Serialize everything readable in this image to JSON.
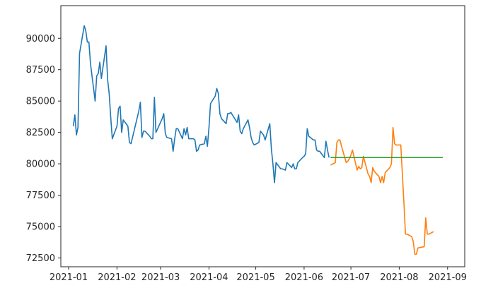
{
  "chart_data": {
    "type": "line",
    "title": "",
    "xlabel": "",
    "ylabel": "",
    "xlim": [
      "2020-12-27",
      "2021-09-12"
    ],
    "ylim": [
      71800,
      92600
    ],
    "grid": false,
    "x_ticks": [
      "2021-01",
      "2021-02",
      "2021-03",
      "2021-04",
      "2021-05",
      "2021-06",
      "2021-07",
      "2021-08",
      "2021-09"
    ],
    "y_ticks": [
      "72500",
      "75000",
      "77500",
      "80000",
      "82500",
      "85000",
      "87500",
      "90000"
    ],
    "series": [
      {
        "color": "#1f77b4",
        "points": [
          [
            "2021-01-04",
            83000
          ],
          [
            "2021-01-05",
            83900
          ],
          [
            "2021-01-06",
            82300
          ],
          [
            "2021-01-07",
            82900
          ],
          [
            "2021-01-08",
            88800
          ],
          [
            "2021-01-11",
            91000
          ],
          [
            "2021-01-12",
            90600
          ],
          [
            "2021-01-13",
            89700
          ],
          [
            "2021-01-14",
            89700
          ],
          [
            "2021-01-15",
            88000
          ],
          [
            "2021-01-18",
            85000
          ],
          [
            "2021-01-19",
            87000
          ],
          [
            "2021-01-20",
            87200
          ],
          [
            "2021-01-21",
            88100
          ],
          [
            "2021-01-22",
            86800
          ],
          [
            "2021-01-25",
            89400
          ],
          [
            "2021-01-26",
            86700
          ],
          [
            "2021-01-27",
            85600
          ],
          [
            "2021-01-28",
            83700
          ],
          [
            "2021-01-29",
            82000
          ],
          [
            "2021-02-01",
            83000
          ],
          [
            "2021-02-02",
            84400
          ],
          [
            "2021-02-03",
            84600
          ],
          [
            "2021-02-04",
            82500
          ],
          [
            "2021-02-05",
            83500
          ],
          [
            "2021-02-08",
            83000
          ],
          [
            "2021-02-09",
            81700
          ],
          [
            "2021-02-10",
            81600
          ],
          [
            "2021-02-15",
            84200
          ],
          [
            "2021-02-16",
            84900
          ],
          [
            "2021-02-17",
            82100
          ],
          [
            "2021-02-18",
            82600
          ],
          [
            "2021-02-19",
            82600
          ],
          [
            "2021-02-22",
            82200
          ],
          [
            "2021-02-23",
            82000
          ],
          [
            "2021-02-24",
            82000
          ],
          [
            "2021-02-25",
            85300
          ],
          [
            "2021-02-26",
            82500
          ],
          [
            "2021-03-02",
            83600
          ],
          [
            "2021-03-03",
            84000
          ],
          [
            "2021-03-04",
            82400
          ],
          [
            "2021-03-05",
            82100
          ],
          [
            "2021-03-08",
            82000
          ],
          [
            "2021-03-09",
            81000
          ],
          [
            "2021-03-10",
            82000
          ],
          [
            "2021-03-11",
            82800
          ],
          [
            "2021-03-12",
            82800
          ],
          [
            "2021-03-15",
            82000
          ],
          [
            "2021-03-16",
            82800
          ],
          [
            "2021-03-17",
            82300
          ],
          [
            "2021-03-18",
            82900
          ],
          [
            "2021-03-19",
            82000
          ],
          [
            "2021-03-22",
            82000
          ],
          [
            "2021-03-23",
            81900
          ],
          [
            "2021-03-24",
            81000
          ],
          [
            "2021-03-25",
            81100
          ],
          [
            "2021-03-26",
            81500
          ],
          [
            "2021-03-29",
            81600
          ],
          [
            "2021-03-30",
            82200
          ],
          [
            "2021-03-31",
            81400
          ],
          [
            "2021-04-01",
            82900
          ],
          [
            "2021-04-02",
            84800
          ],
          [
            "2021-04-05",
            85400
          ],
          [
            "2021-04-06",
            86000
          ],
          [
            "2021-04-07",
            85600
          ],
          [
            "2021-04-08",
            84000
          ],
          [
            "2021-04-09",
            83600
          ],
          [
            "2021-04-12",
            83200
          ],
          [
            "2021-04-13",
            84000
          ],
          [
            "2021-04-14",
            84000
          ],
          [
            "2021-04-15",
            84100
          ],
          [
            "2021-04-16",
            83900
          ],
          [
            "2021-04-19",
            83300
          ],
          [
            "2021-04-20",
            83900
          ],
          [
            "2021-04-21",
            82600
          ],
          [
            "2021-04-22",
            82400
          ],
          [
            "2021-04-23",
            82800
          ],
          [
            "2021-04-26",
            83500
          ],
          [
            "2021-04-27",
            82900
          ],
          [
            "2021-04-28",
            82100
          ],
          [
            "2021-04-29",
            81700
          ],
          [
            "2021-04-30",
            81500
          ],
          [
            "2021-05-03",
            81700
          ],
          [
            "2021-05-04",
            82600
          ],
          [
            "2021-05-06",
            82300
          ],
          [
            "2021-05-07",
            81900
          ],
          [
            "2021-05-10",
            83200
          ],
          [
            "2021-05-11",
            81200
          ],
          [
            "2021-05-12",
            80000
          ],
          [
            "2021-05-13",
            78500
          ],
          [
            "2021-05-14",
            80100
          ],
          [
            "2021-05-17",
            79600
          ],
          [
            "2021-05-18",
            79600
          ],
          [
            "2021-05-20",
            79500
          ],
          [
            "2021-05-21",
            80100
          ],
          [
            "2021-05-24",
            79700
          ],
          [
            "2021-05-25",
            80000
          ],
          [
            "2021-05-26",
            79600
          ],
          [
            "2021-05-27",
            79600
          ],
          [
            "2021-05-28",
            80100
          ],
          [
            "2021-05-31",
            80500
          ],
          [
            "2021-06-01",
            80600
          ],
          [
            "2021-06-02",
            80800
          ],
          [
            "2021-06-03",
            82800
          ],
          [
            "2021-06-04",
            82200
          ],
          [
            "2021-06-07",
            81900
          ],
          [
            "2021-06-08",
            81900
          ],
          [
            "2021-06-09",
            81100
          ],
          [
            "2021-06-10",
            81000
          ],
          [
            "2021-06-11",
            81000
          ],
          [
            "2021-06-14",
            80500
          ],
          [
            "2021-06-15",
            81800
          ],
          [
            "2021-06-16",
            81100
          ],
          [
            "2021-06-17",
            80500
          ]
        ]
      },
      {
        "color": "#ff7f0e",
        "points": [
          [
            "2021-06-18",
            79900
          ],
          [
            "2021-06-21",
            80100
          ],
          [
            "2021-06-22",
            81700
          ],
          [
            "2021-06-23",
            81900
          ],
          [
            "2021-06-24",
            81900
          ],
          [
            "2021-06-25",
            81400
          ],
          [
            "2021-06-28",
            80100
          ],
          [
            "2021-06-29",
            80200
          ],
          [
            "2021-06-30",
            80400
          ],
          [
            "2021-07-01",
            80700
          ],
          [
            "2021-07-02",
            81100
          ],
          [
            "2021-07-05",
            79500
          ],
          [
            "2021-07-06",
            79800
          ],
          [
            "2021-07-07",
            79600
          ],
          [
            "2021-07-08",
            79700
          ],
          [
            "2021-07-09",
            80600
          ],
          [
            "2021-07-12",
            79200
          ],
          [
            "2021-07-13",
            79000
          ],
          [
            "2021-07-14",
            78500
          ],
          [
            "2021-07-15",
            79700
          ],
          [
            "2021-07-16",
            79400
          ],
          [
            "2021-07-19",
            79000
          ],
          [
            "2021-07-20",
            78500
          ],
          [
            "2021-07-21",
            79000
          ],
          [
            "2021-07-22",
            78500
          ],
          [
            "2021-07-23",
            79300
          ],
          [
            "2021-07-26",
            79700
          ],
          [
            "2021-07-27",
            80000
          ],
          [
            "2021-07-28",
            82900
          ],
          [
            "2021-07-29",
            81600
          ],
          [
            "2021-07-30",
            81500
          ],
          [
            "2021-08-02",
            81500
          ],
          [
            "2021-08-03",
            79200
          ],
          [
            "2021-08-04",
            76900
          ],
          [
            "2021-08-05",
            74400
          ],
          [
            "2021-08-06",
            74400
          ],
          [
            "2021-08-09",
            74200
          ],
          [
            "2021-08-10",
            73800
          ],
          [
            "2021-08-11",
            72800
          ],
          [
            "2021-08-12",
            72800
          ],
          [
            "2021-08-13",
            73300
          ],
          [
            "2021-08-17",
            73400
          ],
          [
            "2021-08-18",
            75700
          ],
          [
            "2021-08-19",
            74400
          ],
          [
            "2021-08-20",
            74400
          ],
          [
            "2021-08-23",
            74600
          ]
        ]
      },
      {
        "color": "#2ca02c",
        "points": [
          [
            "2021-06-18",
            80500
          ],
          [
            "2021-08-29",
            80500
          ]
        ]
      }
    ]
  }
}
